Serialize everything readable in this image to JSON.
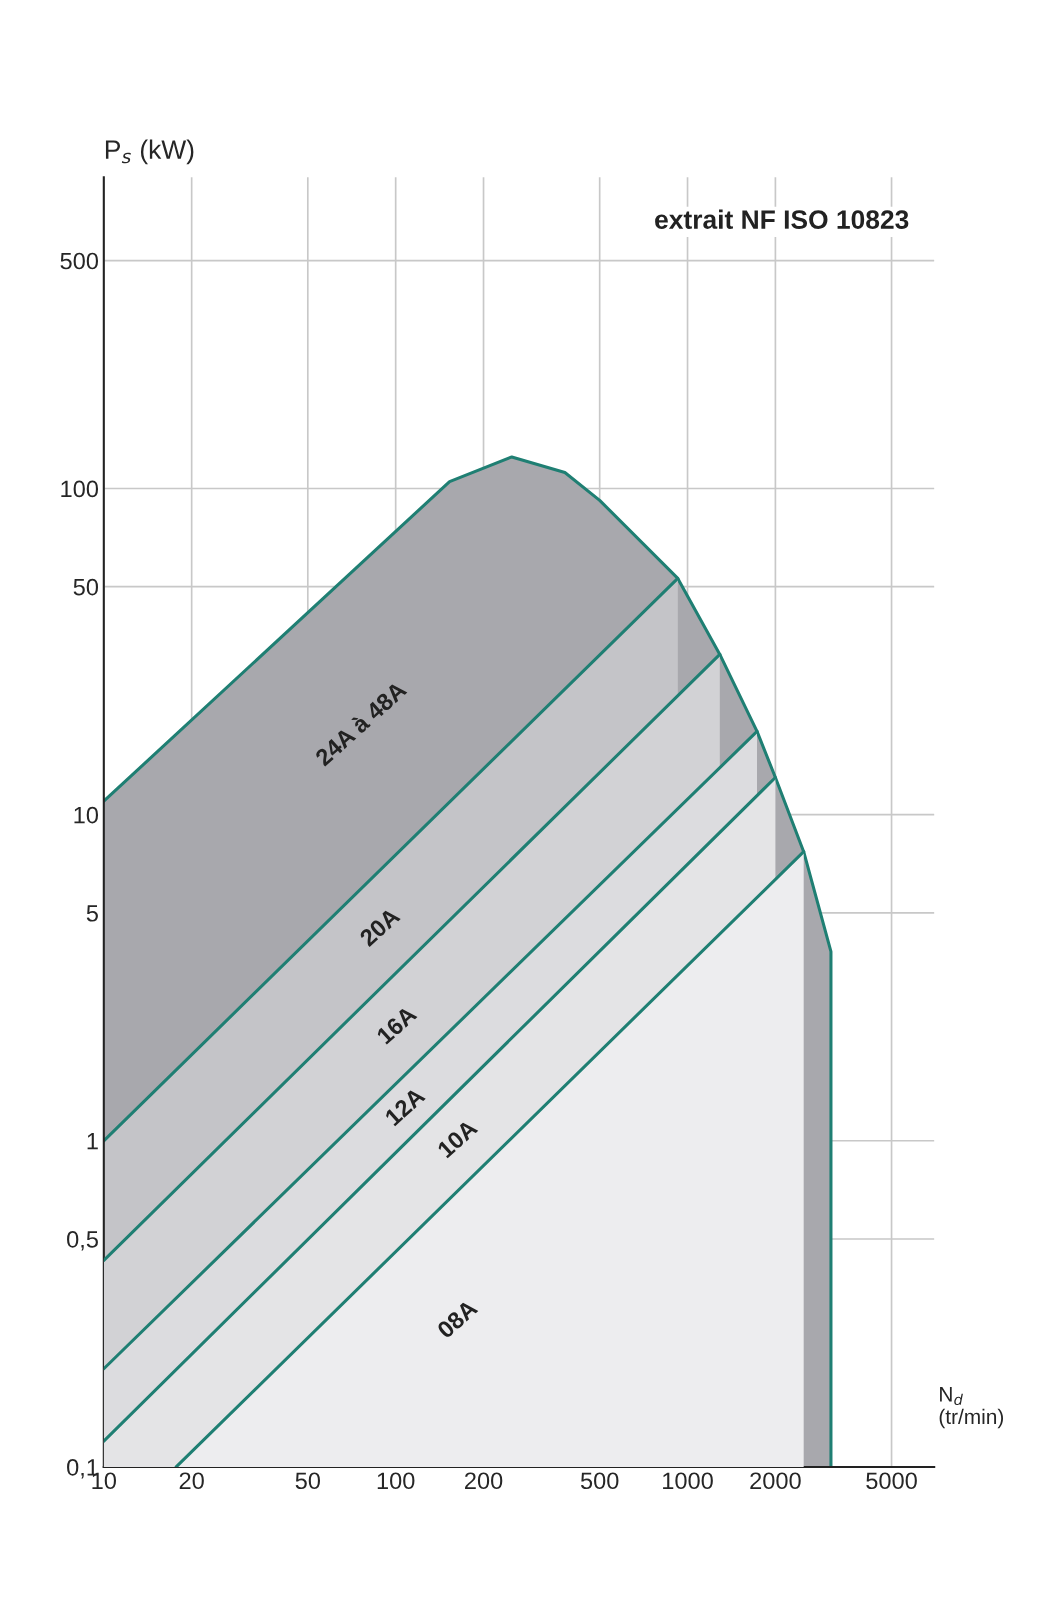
{
  "chart_data": {
    "type": "area",
    "title": "extrait NF ISO 10823",
    "xlabel": "N$_{d}$\n(tr/min)",
    "ylabel": "P$_{s}$ (kW)",
    "log": "xy",
    "grid": true,
    "legend": false,
    "xlim": [
      10,
      7000
    ],
    "ylim": [
      0.1,
      900
    ],
    "xticks": [
      10,
      20,
      50,
      100,
      200,
      500,
      1000,
      2000,
      5000
    ],
    "yticks": [
      {
        "value": 0.1,
        "label": "0,1"
      },
      {
        "value": 0.5,
        "label": "0,5"
      },
      1,
      5,
      10,
      50,
      100,
      500
    ],
    "series": [
      {
        "color": "#a8a8ad",
        "x": [
          10,
          153,
          250,
          380,
          500,
          926,
          1290,
          1730,
          2000,
          2500,
          3100,
          3100
        ],
        "values": [
          11,
          105,
          125,
          112,
          92,
          53,
          31,
          18,
          13,
          7.7,
          3.8,
          0.1
        ]
      },
      {
        "color": "#c4c4c8",
        "x": [
          10,
          926
        ],
        "values": [
          1,
          53
        ]
      },
      {
        "color": "#d2d2d5",
        "x": [
          10,
          1290
        ],
        "values": [
          0.43,
          31
        ]
      },
      {
        "color": "#dcdcdf",
        "x": [
          10,
          1730
        ],
        "values": [
          0.2,
          18
        ]
      },
      {
        "color": "#e4e4e6",
        "x": [
          10,
          2000
        ],
        "values": [
          0.12,
          13
        ]
      },
      {
        "color": "#ededef",
        "x": [
          17.7,
          2500
        ],
        "values": [
          0.1,
          7.7
        ]
      }
    ],
    "annotations": [
      "24A à 48A",
      "20A",
      "16A",
      "12A",
      "10A",
      "08A"
    ]
  }
}
